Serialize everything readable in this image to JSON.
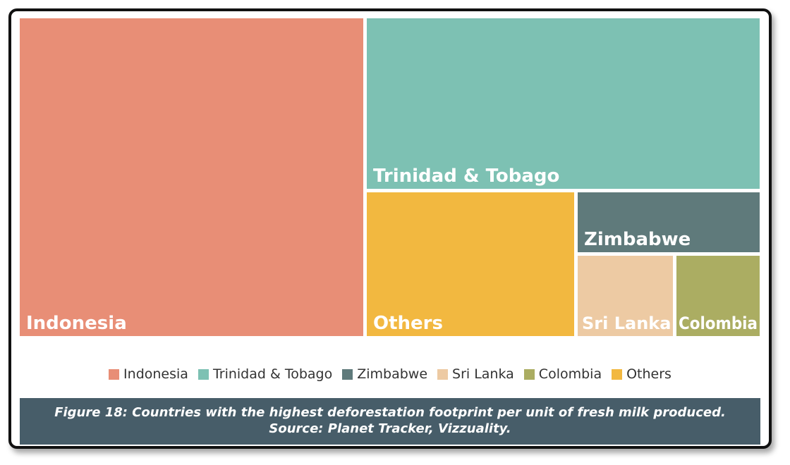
{
  "chart_data": {
    "type": "treemap",
    "items": [
      {
        "name": "Indonesia",
        "color": "#e88e76"
      },
      {
        "name": "Trinidad & Tobago",
        "color": "#7dc1b3"
      },
      {
        "name": "Others",
        "color": "#f2b840"
      },
      {
        "name": "Zimbabwe",
        "color": "#5f7a7b"
      },
      {
        "name": "Sri Lanka",
        "color": "#edcaa3"
      },
      {
        "name": "Colombia",
        "color": "#abad62"
      }
    ],
    "legend": [
      {
        "name": "Indonesia",
        "color": "#e88e76"
      },
      {
        "name": "Trinidad & Tobago",
        "color": "#7dc1b3"
      },
      {
        "name": "Zimbabwe",
        "color": "#5f7a7b"
      },
      {
        "name": "Sri Lanka",
        "color": "#edcaa3"
      },
      {
        "name": "Colombia",
        "color": "#abad62"
      },
      {
        "name": "Others",
        "color": "#f2b840"
      }
    ]
  },
  "caption": {
    "line1": "Figure 18: Countries with the highest deforestation footprint per unit of fresh milk produced.",
    "line2": "Source: Planet Tracker, Vizzuality."
  }
}
